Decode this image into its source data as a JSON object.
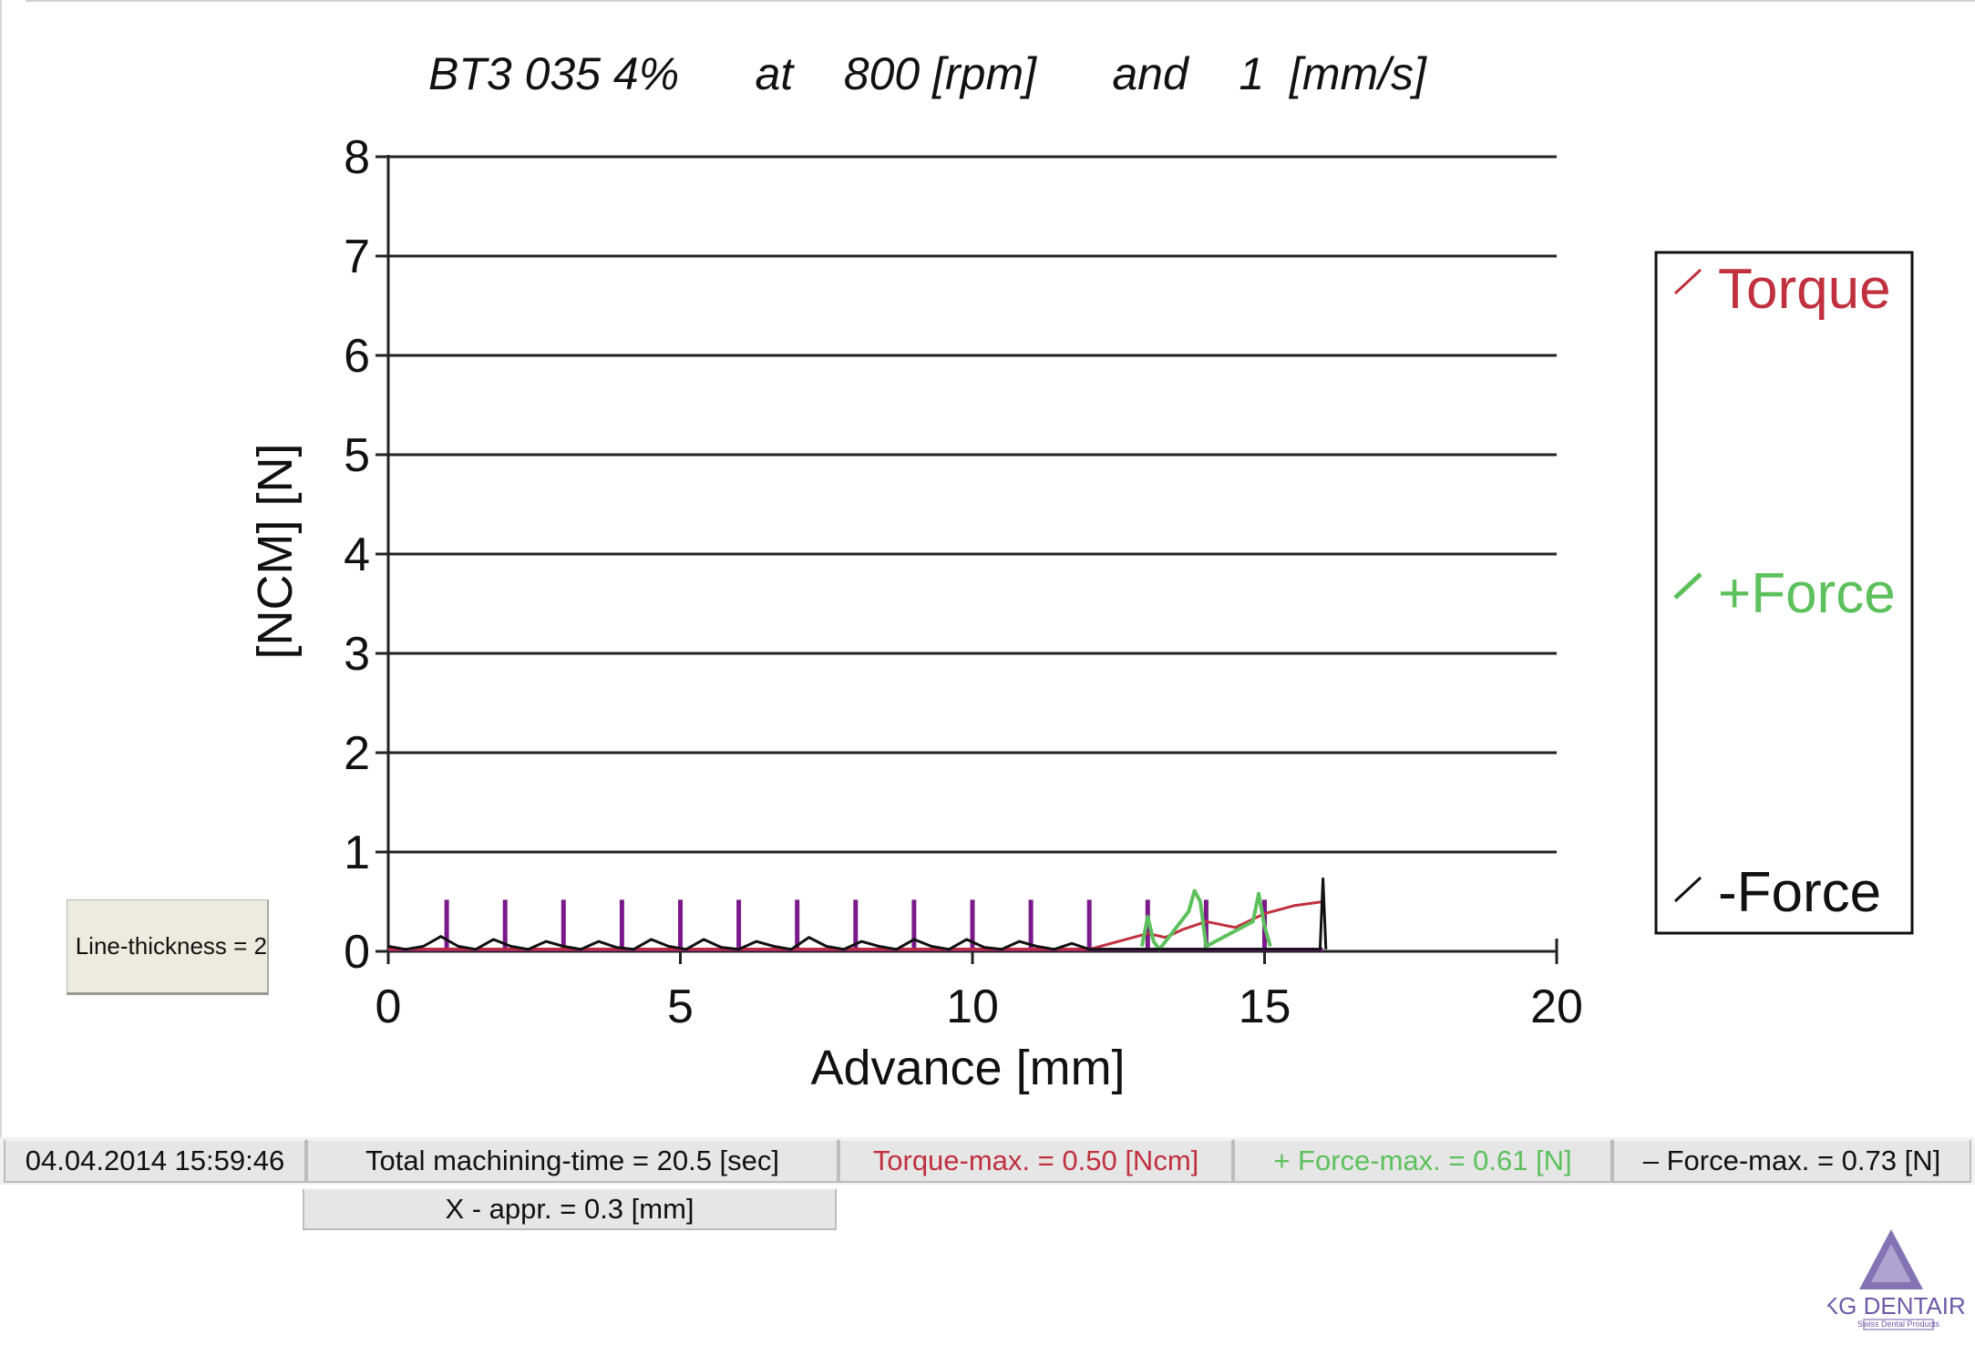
{
  "chart_data": {
    "type": "line",
    "title": "BT3 035 4%      at    800 [rpm]      and    1  [mm/s]",
    "xlabel": "Advance [mm]",
    "ylabel": "[NCM] [N]",
    "xlim": [
      0,
      20
    ],
    "ylim": [
      0,
      8
    ],
    "x_ticks": [
      0,
      5,
      10,
      15,
      20
    ],
    "y_ticks": [
      0,
      1,
      2,
      3,
      4,
      5,
      6,
      7,
      8
    ],
    "grid": "horizontal",
    "legend_position": "right",
    "series": [
      {
        "name": "Torque",
        "color": "#c0303e",
        "x": [
          0,
          12.0,
          12.5,
          13.0,
          13.3,
          13.6,
          14.0,
          14.5,
          15.0,
          15.5,
          16.0
        ],
        "y": [
          0.02,
          0.02,
          0.1,
          0.18,
          0.14,
          0.22,
          0.3,
          0.24,
          0.38,
          0.46,
          0.5
        ]
      },
      {
        "name": "+Force",
        "color": "#5cc05c",
        "x": [
          12.9,
          13.0,
          13.1,
          13.2,
          13.7,
          13.8,
          13.9,
          14.0,
          14.8,
          14.9,
          15.0,
          15.1
        ],
        "y": [
          0.05,
          0.35,
          0.1,
          0.02,
          0.4,
          0.61,
          0.5,
          0.05,
          0.3,
          0.58,
          0.25,
          0.05
        ]
      },
      {
        "name": "-Force",
        "color": "#111111",
        "x": [
          0,
          0.3,
          0.6,
          0.9,
          1.2,
          1.5,
          1.8,
          2.1,
          2.4,
          2.7,
          3.0,
          3.3,
          3.6,
          3.9,
          4.2,
          4.5,
          4.8,
          5.1,
          5.4,
          5.7,
          6.0,
          6.3,
          6.6,
          6.9,
          7.2,
          7.5,
          7.8,
          8.1,
          8.4,
          8.7,
          9.0,
          9.3,
          9.6,
          9.9,
          10.2,
          10.5,
          10.8,
          11.1,
          11.4,
          11.7,
          12.0,
          15.95,
          16.0,
          16.05
        ],
        "y": [
          0.05,
          0.02,
          0.05,
          0.15,
          0.05,
          0.02,
          0.12,
          0.05,
          0.02,
          0.1,
          0.05,
          0.02,
          0.1,
          0.04,
          0.02,
          0.12,
          0.05,
          0.02,
          0.12,
          0.04,
          0.02,
          0.1,
          0.05,
          0.02,
          0.14,
          0.05,
          0.02,
          0.1,
          0.05,
          0.02,
          0.12,
          0.05,
          0.02,
          0.12,
          0.04,
          0.02,
          0.1,
          0.05,
          0.02,
          0.08,
          0.02,
          0.02,
          0.73,
          0.02
        ]
      }
    ],
    "spikes": {
      "color": "#7a1a8a",
      "x": [
        1,
        2,
        3,
        4,
        5,
        6,
        7,
        8,
        9,
        10,
        11,
        12,
        13,
        14,
        15
      ],
      "height": 0.52
    }
  },
  "legend": {
    "torque": "Torque",
    "plus_force": "+Force",
    "minus_force": "-Force",
    "torque_color": "#c0303e",
    "plus_force_color": "#5cc05c",
    "minus_force_color": "#111111"
  },
  "controls": {
    "line_thickness": "Line-thickness = 2"
  },
  "status": {
    "datetime": "04.04.2014 15:59:46",
    "machining_time": "Total machining-time = 20.5 [sec]",
    "torque_max": "Torque-max. = 0.50 [Ncm]",
    "plus_force_max": "+ Force-max. = 0.61 [N]",
    "minus_force_max": "– Force-max. = 0.73 [N]",
    "x_appr": "X - appr. = 0.3 [mm]",
    "torque_color": "#c0303e",
    "plus_force_color": "#5cc05c"
  },
  "logo": {
    "name": "FKG DENTAIRE",
    "tagline": "Swiss Dental Products",
    "color": "#6d5aa8"
  }
}
